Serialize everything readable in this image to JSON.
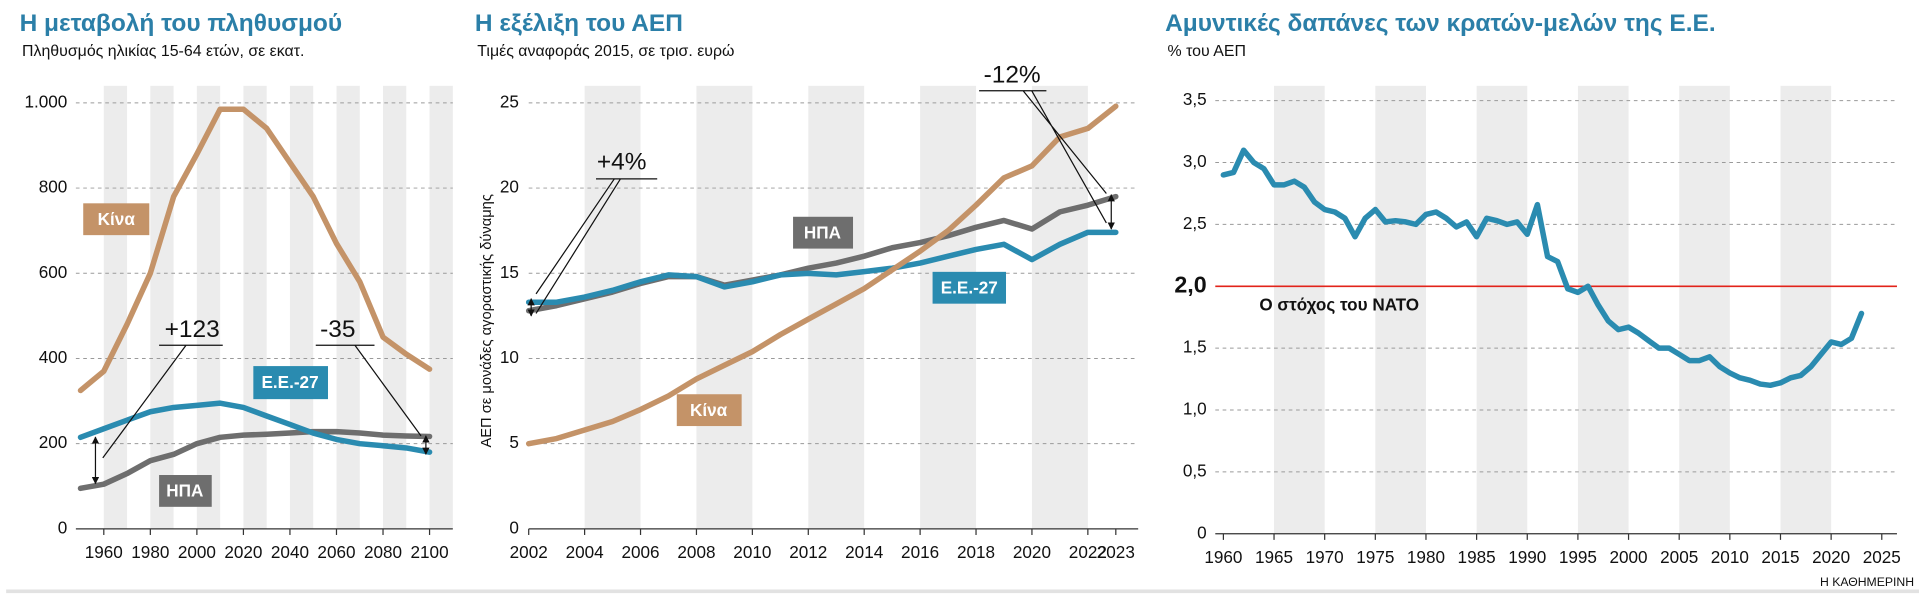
{
  "chart_data": [
    {
      "type": "line",
      "title": "Η μεταβολή του πληθυσμού",
      "subtitle": "Πληθυσμός ηλικίας 15-64 ετών, σε εκατ.",
      "x": [
        1950,
        1960,
        1970,
        1980,
        1990,
        2000,
        2010,
        2020,
        2030,
        2040,
        2050,
        2060,
        2070,
        2080,
        2090,
        2100
      ],
      "series": [
        {
          "name": "Κίνα",
          "color": "#c49368",
          "values": [
            325,
            370,
            480,
            600,
            780,
            880,
            985,
            985,
            940,
            860,
            780,
            670,
            580,
            450,
            410,
            375
          ]
        },
        {
          "name": "ΗΠΑ",
          "color": "#6e6e6e",
          "values": [
            95,
            105,
            130,
            160,
            175,
            200,
            215,
            220,
            222,
            225,
            228,
            228,
            225,
            220,
            218,
            217
          ]
        },
        {
          "name": "Ε.Ε.-27",
          "color": "#2a8bb0",
          "values": [
            215,
            235,
            255,
            275,
            285,
            290,
            295,
            285,
            265,
            245,
            225,
            210,
            200,
            195,
            190,
            180
          ]
        }
      ],
      "xlim": [
        1948,
        2110
      ],
      "xticks": [
        1960,
        1980,
        2000,
        2020,
        2040,
        2060,
        2080,
        2100
      ],
      "ylim": [
        0,
        1040
      ],
      "yticks": [
        0,
        200,
        400,
        600,
        800,
        {
          "value": 1000,
          "label": "1.000"
        }
      ],
      "grid": true,
      "annotations": [
        "+123",
        "-35"
      ]
    },
    {
      "type": "line",
      "title": "Η εξέλιξη του ΑΕΠ",
      "subtitle": "Τιμές αναφοράς 2015, σε τρισ. ευρώ",
      "ylabel": "ΑΕΠ σε μονάδες αγοραστικής δύναμης",
      "x": [
        2002,
        2003,
        2004,
        2005,
        2006,
        2007,
        2008,
        2009,
        2010,
        2011,
        2012,
        2013,
        2014,
        2015,
        2016,
        2017,
        2018,
        2019,
        2020,
        2021,
        2022,
        2023
      ],
      "series": [
        {
          "name": "ΗΠΑ",
          "color": "#6e6e6e",
          "values": [
            12.8,
            13.1,
            13.5,
            13.9,
            14.4,
            14.8,
            14.8,
            14.3,
            14.6,
            14.9,
            15.3,
            15.6,
            16.0,
            16.5,
            16.8,
            17.2,
            17.7,
            18.1,
            17.6,
            18.6,
            19.0,
            19.5
          ]
        },
        {
          "name": "Ε.Ε.-27",
          "color": "#2a8bb0",
          "values": [
            13.3,
            13.3,
            13.6,
            14.0,
            14.5,
            14.9,
            14.8,
            14.2,
            14.5,
            14.9,
            15.0,
            14.9,
            15.1,
            15.3,
            15.6,
            16.0,
            16.4,
            16.7,
            15.8,
            16.7,
            17.4,
            17.4
          ]
        },
        {
          "name": "Κίνα",
          "color": "#c49368",
          "values": [
            5.0,
            5.3,
            5.8,
            6.3,
            7.0,
            7.8,
            8.8,
            9.6,
            10.4,
            11.4,
            12.3,
            13.2,
            14.1,
            15.2,
            16.3,
            17.5,
            19.0,
            20.6,
            21.3,
            23.0,
            23.5,
            24.8
          ]
        }
      ],
      "xlim": [
        2002,
        2023.8
      ],
      "xticks": [
        2002,
        2004,
        2006,
        2008,
        2010,
        2012,
        2014,
        2016,
        2018,
        2020,
        2022,
        2023
      ],
      "ylim": [
        0,
        26
      ],
      "yticks": [
        0,
        5,
        10,
        15,
        20,
        25
      ],
      "grid": true,
      "annotations": [
        "+4%",
        "-12%"
      ]
    },
    {
      "type": "line",
      "title": "Αμυντικές δαπάνες των κρατών-μελών της Ε.Ε.",
      "subtitle": "% του ΑΕΠ",
      "x": [
        1960,
        1961,
        1962,
        1963,
        1964,
        1965,
        1966,
        1967,
        1968,
        1969,
        1970,
        1971,
        1972,
        1973,
        1974,
        1975,
        1976,
        1977,
        1978,
        1979,
        1980,
        1981,
        1982,
        1983,
        1984,
        1985,
        1986,
        1987,
        1988,
        1989,
        1990,
        1991,
        1992,
        1993,
        1994,
        1995,
        1996,
        1997,
        1998,
        1999,
        2000,
        2001,
        2002,
        2003,
        2004,
        2005,
        2006,
        2007,
        2008,
        2009,
        2010,
        2011,
        2012,
        2013,
        2014,
        2015,
        2016,
        2017,
        2018,
        2019,
        2020,
        2021,
        2022,
        2023
      ],
      "series": [
        {
          "name": "Ε.Ε.",
          "color": "#2a8bb0",
          "values": [
            2.9,
            2.92,
            3.1,
            3.0,
            2.95,
            2.82,
            2.82,
            2.85,
            2.8,
            2.68,
            2.62,
            2.6,
            2.55,
            2.4,
            2.55,
            2.62,
            2.52,
            2.53,
            2.52,
            2.5,
            2.58,
            2.6,
            2.55,
            2.48,
            2.52,
            2.4,
            2.55,
            2.53,
            2.5,
            2.52,
            2.42,
            2.66,
            2.24,
            2.2,
            1.98,
            1.95,
            2.0,
            1.85,
            1.72,
            1.65,
            1.67,
            1.62,
            1.56,
            1.5,
            1.5,
            1.45,
            1.4,
            1.4,
            1.43,
            1.35,
            1.3,
            1.26,
            1.24,
            1.21,
            1.2,
            1.22,
            1.26,
            1.28,
            1.35,
            1.45,
            1.55,
            1.53,
            1.58,
            1.78
          ]
        }
      ],
      "xlim": [
        1959.2,
        2026.5
      ],
      "xticks": [
        1960,
        1965,
        1970,
        1975,
        1980,
        1985,
        1990,
        1995,
        2000,
        2005,
        2010,
        2015,
        2020,
        2025
      ],
      "ylim": [
        0,
        3.62
      ],
      "yticks": [
        0,
        {
          "value": 0.5,
          "label": "0,5"
        },
        {
          "value": 1,
          "label": "1,0"
        },
        {
          "value": 1.5,
          "label": "1,5"
        },
        {
          "value": 2.5,
          "label": "2,5"
        },
        {
          "value": 3,
          "label": "3,0"
        },
        {
          "value": 3.5,
          "label": "3,5"
        }
      ],
      "grid": true,
      "target": {
        "value": 2,
        "label": "2,0",
        "text": "Ο στόχος του ΝΑΤΟ",
        "color": "#e2231a"
      }
    }
  ],
  "source": "Η ΚΑΘΗΜΕΡΙΝΗ"
}
